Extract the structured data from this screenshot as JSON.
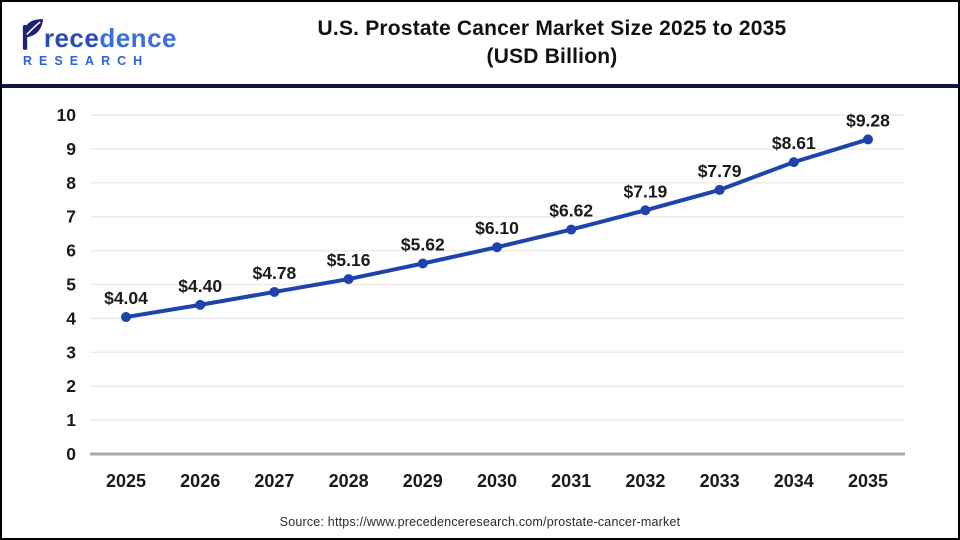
{
  "header": {
    "logo": {
      "brand_p1": "P",
      "brand_p2": "rece",
      "brand_p3": "dence",
      "research": "RESEARCH"
    },
    "title_line1": "U.S. Prostate Cancer Market Size 2025 to 2035",
    "title_line2": "(USD Billion)"
  },
  "chart_data": {
    "type": "line",
    "title": "U.S. Prostate Cancer Market Size 2025 to 2035 (USD Billion)",
    "categories": [
      "2025",
      "2026",
      "2027",
      "2028",
      "2029",
      "2030",
      "2031",
      "2032",
      "2033",
      "2034",
      "2035"
    ],
    "values": [
      4.04,
      4.4,
      4.78,
      5.16,
      5.62,
      6.1,
      6.62,
      7.19,
      7.79,
      8.61,
      9.28
    ],
    "point_labels": [
      "$4.04",
      "$4.40",
      "$4.78",
      "$5.16",
      "$5.62",
      "$6.10",
      "$6.62",
      "$7.19",
      "$7.79",
      "$8.61",
      "$9.28"
    ],
    "xlabel": "",
    "ylabel": "",
    "ylim": [
      0,
      10
    ],
    "yticks": [
      0,
      1,
      2,
      3,
      4,
      5,
      6,
      7,
      8,
      9,
      10
    ],
    "grid": true,
    "legend": "none",
    "line_color": "#1e43ad",
    "grid_color": "#ececec",
    "zero_axis_color": "#aaaaaa",
    "label_color": "#1a1a1a"
  },
  "footer": {
    "source": "Source: https://www.precedenceresearch.com/prostate-cancer-market"
  }
}
